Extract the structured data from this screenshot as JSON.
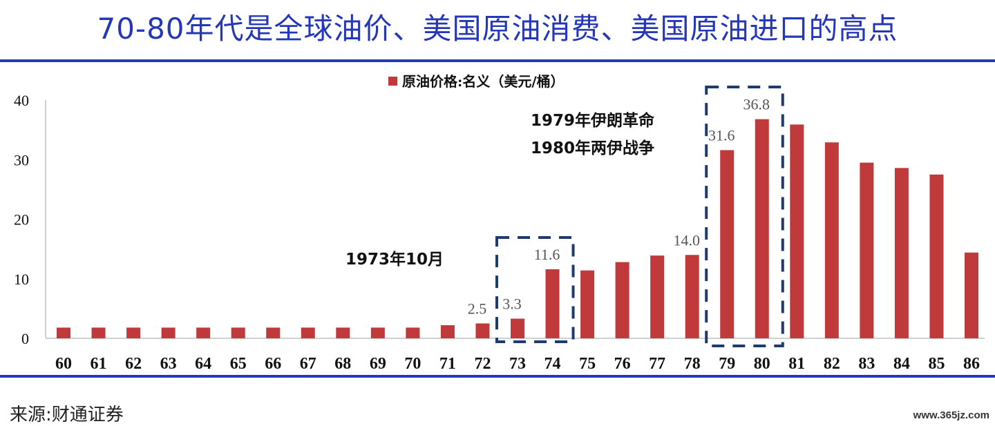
{
  "title": "70-80年代是全球油价、美国原油消费、美国原油进口的高点",
  "source": "来源:财通证券",
  "watermark": "www.365jz.com",
  "colors": {
    "title": "#2437b8",
    "bar": "#c0393b",
    "box": "#1f3a6e"
  },
  "chart_data": {
    "type": "bar",
    "title": "",
    "xlabel": "",
    "ylabel": "",
    "ylim": [
      0,
      40
    ],
    "yticks": [
      "0",
      "10",
      "20",
      "30",
      "40"
    ],
    "legend": {
      "label": "原油价格:名义（美元/桶）",
      "placement": "top-center"
    },
    "categories": [
      "60",
      "61",
      "62",
      "63",
      "64",
      "65",
      "66",
      "67",
      "68",
      "69",
      "70",
      "71",
      "72",
      "73",
      "74",
      "75",
      "76",
      "77",
      "78",
      "79",
      "80",
      "81",
      "82",
      "83",
      "84",
      "85",
      "86"
    ],
    "series": [
      {
        "name": "原油价格:名义（美元/桶）",
        "values": [
          1.8,
          1.8,
          1.8,
          1.8,
          1.8,
          1.8,
          1.8,
          1.8,
          1.8,
          1.8,
          1.8,
          2.2,
          2.5,
          3.3,
          11.6,
          11.4,
          12.8,
          13.9,
          14.0,
          31.6,
          36.8,
          35.9,
          32.9,
          29.5,
          28.6,
          27.5,
          14.4
        ]
      }
    ],
    "data_labels": [
      {
        "category": "72",
        "text": "2.5"
      },
      {
        "category": "73",
        "text": "3.3"
      },
      {
        "category": "74",
        "text": "11.6"
      },
      {
        "category": "78",
        "text": "14.0"
      },
      {
        "category": "79",
        "text": "31.6"
      },
      {
        "category": "80",
        "text": "36.8"
      }
    ],
    "annotations": [
      {
        "text": "1973年10月",
        "boxed_categories": [
          "73",
          "74"
        ]
      },
      {
        "text": "1979年伊朗革命",
        "boxed_categories": [
          "79",
          "80"
        ]
      },
      {
        "text": "1980年两伊战争",
        "boxed_categories": [
          "79",
          "80"
        ]
      }
    ]
  }
}
